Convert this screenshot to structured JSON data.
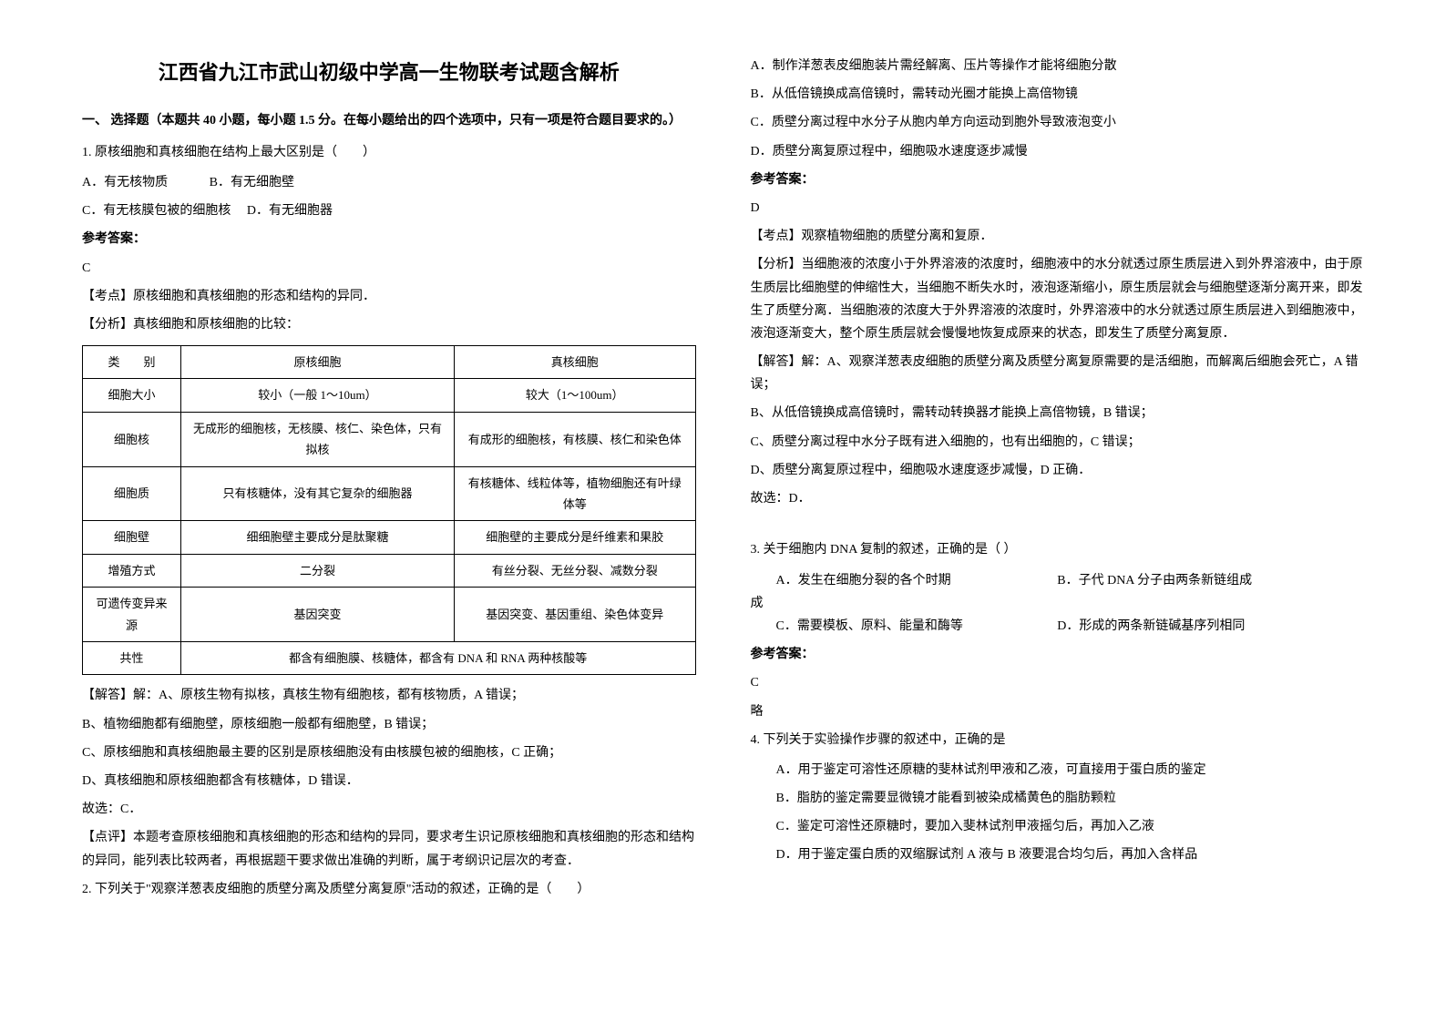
{
  "title": "江西省九江市武山初级中学高一生物联考试题含解析",
  "section1_header": "一、 选择题（本题共 40 小题，每小题 1.5 分。在每小题给出的四个选项中，只有一项是符合题目要求的。）",
  "q1": {
    "stem": "1. 原核细胞和真核细胞在结构上最大区别是（　　）",
    "optA": "A．有无核物质",
    "optB": "B．有无细胞壁",
    "optC": "C．有无核膜包被的细胞核",
    "optD": "D．有无细胞器",
    "answer_label": "参考答案：",
    "answer": "C",
    "exp1": "【考点】原核细胞和真核细胞的形态和结构的异同．",
    "exp2": "【分析】真核细胞和原核细胞的比较：",
    "table": {
      "headers": [
        "类　　别",
        "原核细胞",
        "真核细胞"
      ],
      "rows": [
        [
          "细胞大小",
          "较小（一般 1～10um）",
          "较大（1～100um）"
        ],
        [
          "细胞核",
          "无成形的细胞核，无核膜、核仁、染色体，只有拟核",
          "有成形的细胞核，有核膜、核仁和染色体"
        ],
        [
          "细胞质",
          "只有核糖体，没有其它复杂的细胞器",
          "有核糖体、线粒体等，植物细胞还有叶绿体等"
        ],
        [
          "细胞壁",
          "细细胞壁主要成分是肽聚糖",
          "细胞壁的主要成分是纤维素和果胶"
        ],
        [
          "增殖方式",
          "二分裂",
          "有丝分裂、无丝分裂、减数分裂"
        ],
        [
          "可遗传变异来源",
          "基因突变",
          "基因突变、基因重组、染色体变异"
        ],
        [
          "共性",
          "都含有细胞膜、核糖体，都含有 DNA 和 RNA 两种核酸等"
        ]
      ]
    },
    "exp3": "【解答】解：A、原核生物有拟核，真核生物有细胞核，都有核物质，A 错误；",
    "exp4": "B、植物细胞都有细胞壁，原核细胞一般都有细胞壁，B 错误；",
    "exp5": "C、原核细胞和真核细胞最主要的区别是原核细胞没有由核膜包被的细胞核，C 正确；",
    "exp6": "D、真核细胞和原核细胞都含有核糖体，D 错误．",
    "exp7": "故选：C．",
    "exp8": "【点评】本题考查原核细胞和真核细胞的形态和结构的异同，要求考生识记原核细胞和真核细胞的形态和结构的异同，能列表比较两者，再根据题干要求做出准确的判断，属于考纲识记层次的考查．"
  },
  "q2": {
    "stem": "2. 下列关于\"观察洋葱表皮细胞的质壁分离及质壁分离复原\"活动的叙述，正确的是（　　）",
    "optA": "A．制作洋葱表皮细胞装片需经解离、压片等操作才能将细胞分散",
    "optB": "B．从低倍镜换成高倍镜时，需转动光圈才能换上高倍物镜",
    "optC": "C．质壁分离过程中水分子从胞内单方向运动到胞外导致液泡变小",
    "optD": "D．质壁分离复原过程中，细胞吸水速度逐步减慢",
    "answer_label": "参考答案：",
    "answer": "D",
    "exp1": "【考点】观察植物细胞的质壁分离和复原．",
    "exp2": "【分析】当细胞液的浓度小于外界溶液的浓度时，细胞液中的水分就透过原生质层进入到外界溶液中，由于原生质层比细胞壁的伸缩性大，当细胞不断失水时，液泡逐渐缩小，原生质层就会与细胞壁逐渐分离开来，即发生了质壁分离．当细胞液的浓度大于外界溶液的浓度时，外界溶液中的水分就透过原生质层进入到细胞液中，液泡逐渐变大，整个原生质层就会慢慢地恢复成原来的状态，即发生了质壁分离复原．",
    "exp3": "【解答】解：A、观察洋葱表皮细胞的质壁分离及质壁分离复原需要的是活细胞，而解离后细胞会死亡，A 错误；",
    "exp4": "B、从低倍镜换成高倍镜时，需转动转换器才能换上高倍物镜，B 错误；",
    "exp5": "C、质壁分离过程中水分子既有进入细胞的，也有出细胞的，C 错误；",
    "exp6": "D、质壁分离复原过程中，细胞吸水速度逐步减慢，D 正确．",
    "exp7": "故选：D．"
  },
  "q3": {
    "stem": "3. 关于细胞内 DNA 复制的叙述，正确的是（   ）",
    "optA": "A．发生在细胞分裂的各个时期",
    "optB": "B．子代 DNA 分子由两条新链组成",
    "optC": "C．需要模板、原料、能量和酶等",
    "optD": "D．形成的两条新链碱基序列相同",
    "answer_label": "参考答案：",
    "answer": "C",
    "exp1": "略"
  },
  "q4": {
    "stem": "4. 下列关于实验操作步骤的叙述中，正确的是",
    "optA": "A．用于鉴定可溶性还原糖的斐林试剂甲液和乙液，可直接用于蛋白质的鉴定",
    "optB": "B．脂肪的鉴定需要显微镜才能看到被染成橘黄色的脂肪颗粒",
    "optC": "C．鉴定可溶性还原糖时，要加入斐林试剂甲液摇匀后，再加入乙液",
    "optD": "D．用于鉴定蛋白质的双缩脲试剂 A 液与 B 液要混合均匀后，再加入含样品"
  }
}
